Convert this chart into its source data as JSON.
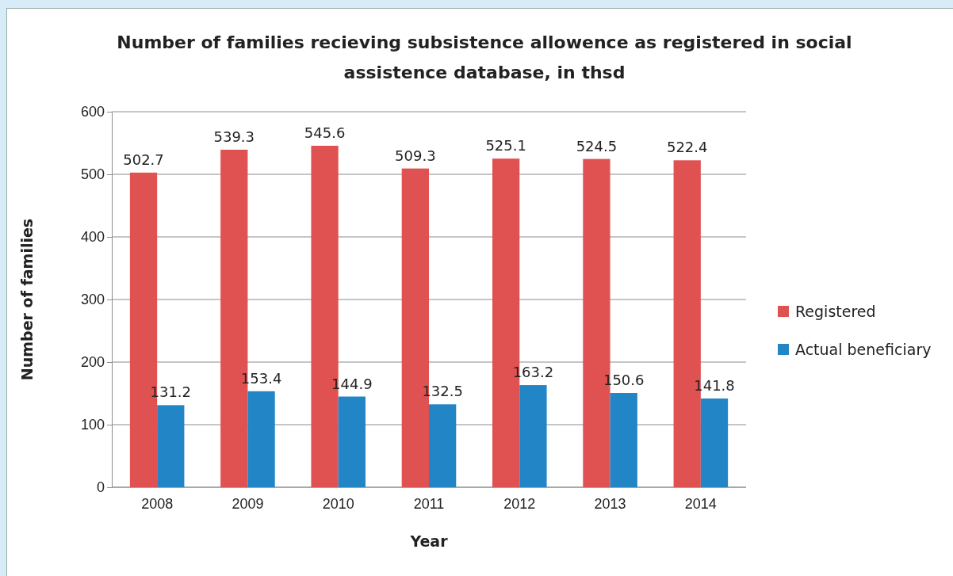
{
  "chart_data": {
    "type": "bar",
    "title": "Number of families recieving subsistence allowence as registered in social assistence database, in thsd",
    "xlabel": "Year",
    "ylabel": "Number of families",
    "categories": [
      "2008",
      "2009",
      "2010",
      "2011",
      "2012",
      "2013",
      "2014"
    ],
    "series": [
      {
        "name": "Registered",
        "color": "#e05252",
        "values": [
          502.7,
          539.3,
          545.6,
          509.3,
          525.1,
          524.5,
          522.4
        ]
      },
      {
        "name": "Actual beneficiary",
        "color": "#2185c6",
        "values": [
          131.2,
          153.4,
          144.9,
          132.5,
          163.2,
          150.6,
          141.8
        ]
      }
    ],
    "ylim": [
      0,
      600
    ],
    "yticks": [
      0,
      100,
      200,
      300,
      400,
      500,
      600
    ],
    "grid": "y",
    "legend": "right",
    "data_labels": true
  }
}
